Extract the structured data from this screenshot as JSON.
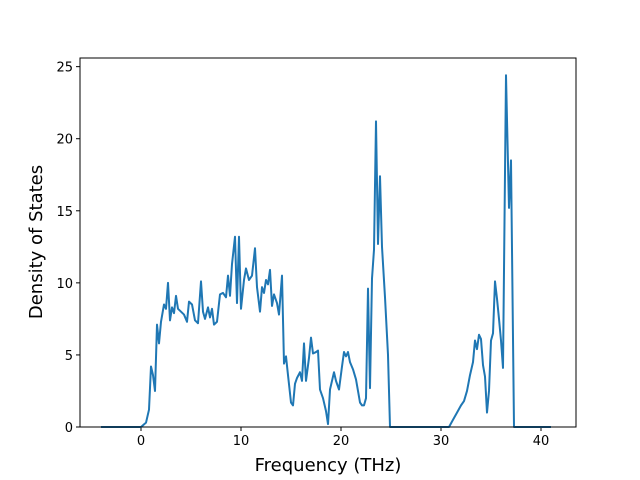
{
  "chart_data": {
    "type": "line",
    "x_label": "Frequency (THz)",
    "y_label": "Density of States",
    "x": [
      -4,
      0,
      0.5,
      0.8,
      1,
      1.2,
      1.4,
      1.6,
      1.8,
      2.0,
      2.3,
      2.5,
      2.7,
      2.9,
      3.1,
      3.3,
      3.5,
      3.7,
      4.0,
      4.3,
      4.6,
      4.8,
      5.1,
      5.4,
      5.7,
      6.0,
      6.2,
      6.4,
      6.7,
      6.9,
      7.1,
      7.3,
      7.6,
      7.9,
      8.2,
      8.5,
      8.7,
      8.9,
      9.1,
      9.4,
      9.6,
      9.8,
      10.0,
      10.3,
      10.5,
      10.8,
      11.1,
      11.4,
      11.6,
      11.9,
      12.1,
      12.3,
      12.5,
      12.7,
      12.9,
      13.1,
      13.3,
      13.6,
      13.8,
      14.1,
      14.3,
      14.5,
      14.7,
      15.0,
      15.2,
      15.4,
      15.6,
      15.9,
      16.1,
      16.3,
      16.5,
      16.8,
      17.0,
      17.2,
      17.5,
      17.7,
      17.9,
      18.2,
      18.5,
      18.7,
      18.9,
      19.3,
      19.5,
      19.8,
      20.1,
      20.3,
      20.5,
      20.7,
      20.9,
      21.2,
      21.5,
      21.7,
      21.9,
      22.1,
      22.3,
      22.5,
      22.7,
      22.9,
      23.1,
      23.3,
      23.5,
      23.7,
      23.9,
      24.1,
      24.4,
      24.7,
      24.9,
      30.8,
      31.2,
      31.6,
      32.0,
      32.3,
      32.6,
      32.9,
      33.2,
      33.4,
      33.6,
      33.8,
      34.0,
      34.2,
      34.4,
      34.6,
      34.8,
      35.0,
      35.2,
      35.4,
      35.6,
      35.8,
      36.0,
      36.2,
      36.5,
      36.8,
      37.0,
      37.3,
      41
    ],
    "series": [
      {
        "color": "#1f77b4",
        "values": [
          0,
          0,
          0.3,
          1.2,
          4.2,
          3.6,
          2.5,
          7.1,
          5.8,
          7.3,
          8.5,
          8.2,
          10,
          7.4,
          8.3,
          7.9,
          9.1,
          8.2,
          8.0,
          7.8,
          7.3,
          8.7,
          8.5,
          7.4,
          7.2,
          10.1,
          8.0,
          7.5,
          8.3,
          7.6,
          8.2,
          7.1,
          7.3,
          9.2,
          9.3,
          9.0,
          10.5,
          9.1,
          11.3,
          13.2,
          8.6,
          13.2,
          8.2,
          10.2,
          11.0,
          10.2,
          10.5,
          12.4,
          9.7,
          8.0,
          9.7,
          9.3,
          10.2,
          9.9,
          10.9,
          8.4,
          9.2,
          8.6,
          7.8,
          10.5,
          4.4,
          4.9,
          3.6,
          1.7,
          1.5,
          3.0,
          3.4,
          3.8,
          3.2,
          5.8,
          3.2,
          4.8,
          6.2,
          5.1,
          5.2,
          5.3,
          2.6,
          2.0,
          1.1,
          0.2,
          2.6,
          3.8,
          3.2,
          2.6,
          4.2,
          5.2,
          4.9,
          5.2,
          4.5,
          4.0,
          3.3,
          2.5,
          1.7,
          1.5,
          1.5,
          2.0,
          9.6,
          2.7,
          10.3,
          12.3,
          21.2,
          12.7,
          17.4,
          12.5,
          9.0,
          5.0,
          0,
          0,
          0.5,
          1.0,
          1.5,
          1.8,
          2.5,
          3.6,
          4.5,
          6.0,
          5.4,
          6.4,
          6.1,
          4.3,
          3.5,
          1.0,
          2.5,
          6.0,
          6.5,
          10.1,
          8.9,
          7.5,
          6.0,
          4.1,
          24.4,
          15.2,
          18.5,
          0,
          0
        ]
      }
    ],
    "xlim": [
      -6.1,
      43.5
    ],
    "ylim": [
      0,
      25.6
    ],
    "xticks": [
      0,
      10,
      20,
      30,
      40
    ],
    "yticks": [
      0,
      5,
      10,
      15,
      20,
      25
    ]
  }
}
